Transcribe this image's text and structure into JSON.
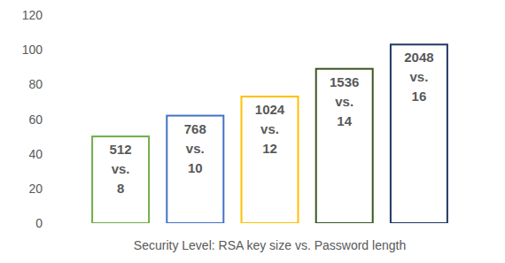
{
  "chart_data": {
    "type": "bar",
    "x_label": "Security Level:  RSA key size vs. Password length",
    "categories": [
      "512 vs. 8",
      "768 vs. 10",
      "1024 vs. 12",
      "1536 vs. 14",
      "2048 vs. 16"
    ],
    "values": [
      50,
      62,
      73,
      89,
      103
    ],
    "colors": [
      "#70ad47",
      "#4472c4",
      "#ffc000",
      "#385723",
      "#203864"
    ],
    "ylim": [
      0,
      120
    ],
    "yticks": [
      0,
      20,
      40,
      60,
      80,
      100,
      120
    ],
    "grid": false
  }
}
